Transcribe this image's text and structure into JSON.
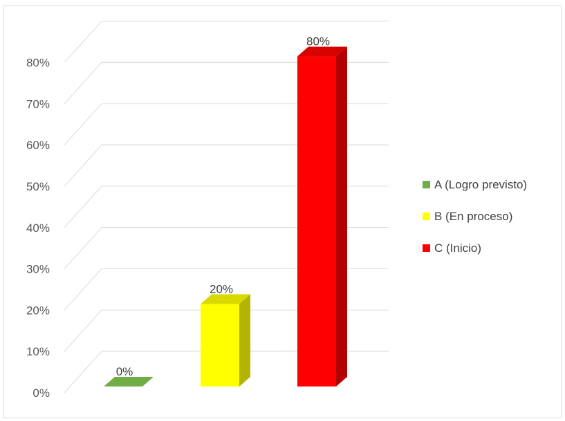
{
  "chart_data": {
    "type": "bar",
    "variant": "3d-column",
    "categories": [
      "A (Logro previsto)",
      "B (En proceso)",
      "C (Inicio)"
    ],
    "values": [
      0,
      20,
      80
    ],
    "value_labels": [
      "0%",
      "20%",
      "80%"
    ],
    "colors": [
      "#70ad47",
      "#ffff00",
      "#ff0000"
    ],
    "yticks": [
      "0%",
      "10%",
      "20%",
      "30%",
      "40%",
      "50%",
      "60%",
      "70%",
      "80%"
    ],
    "ylim": [
      0,
      80
    ],
    "grid": true,
    "legend": {
      "position": "right",
      "items": [
        "A (Logro previsto)",
        "B (En proceso)",
        "C (Inicio)"
      ]
    },
    "title": "",
    "xlabel": "",
    "ylabel": ""
  }
}
